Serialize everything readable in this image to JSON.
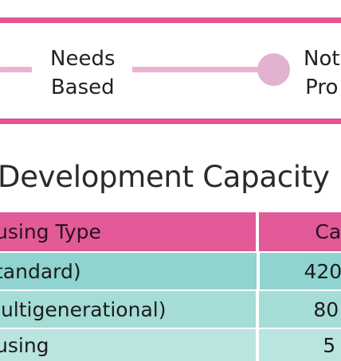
{
  "spectrum": {
    "stops": [
      {
        "line1": "Needs",
        "line2": "Based"
      },
      {
        "line1": "Not",
        "line2": "Pro"
      }
    ],
    "colors": {
      "rule": "#e25493",
      "track": "#e8b4d2",
      "knob": "#e3b2d0"
    }
  },
  "section": {
    "title": "Development Capacity"
  },
  "table": {
    "headers": [
      "using Type",
      "Ca"
    ],
    "rows": [
      {
        "type": "tandard)",
        "capacity": "420"
      },
      {
        "type": "lultigenerational)",
        "capacity": "80"
      },
      {
        "type": "using",
        "capacity": "5"
      }
    ],
    "colors": {
      "header": "#e25a98",
      "row_light": "#a5dcd7"
    }
  }
}
